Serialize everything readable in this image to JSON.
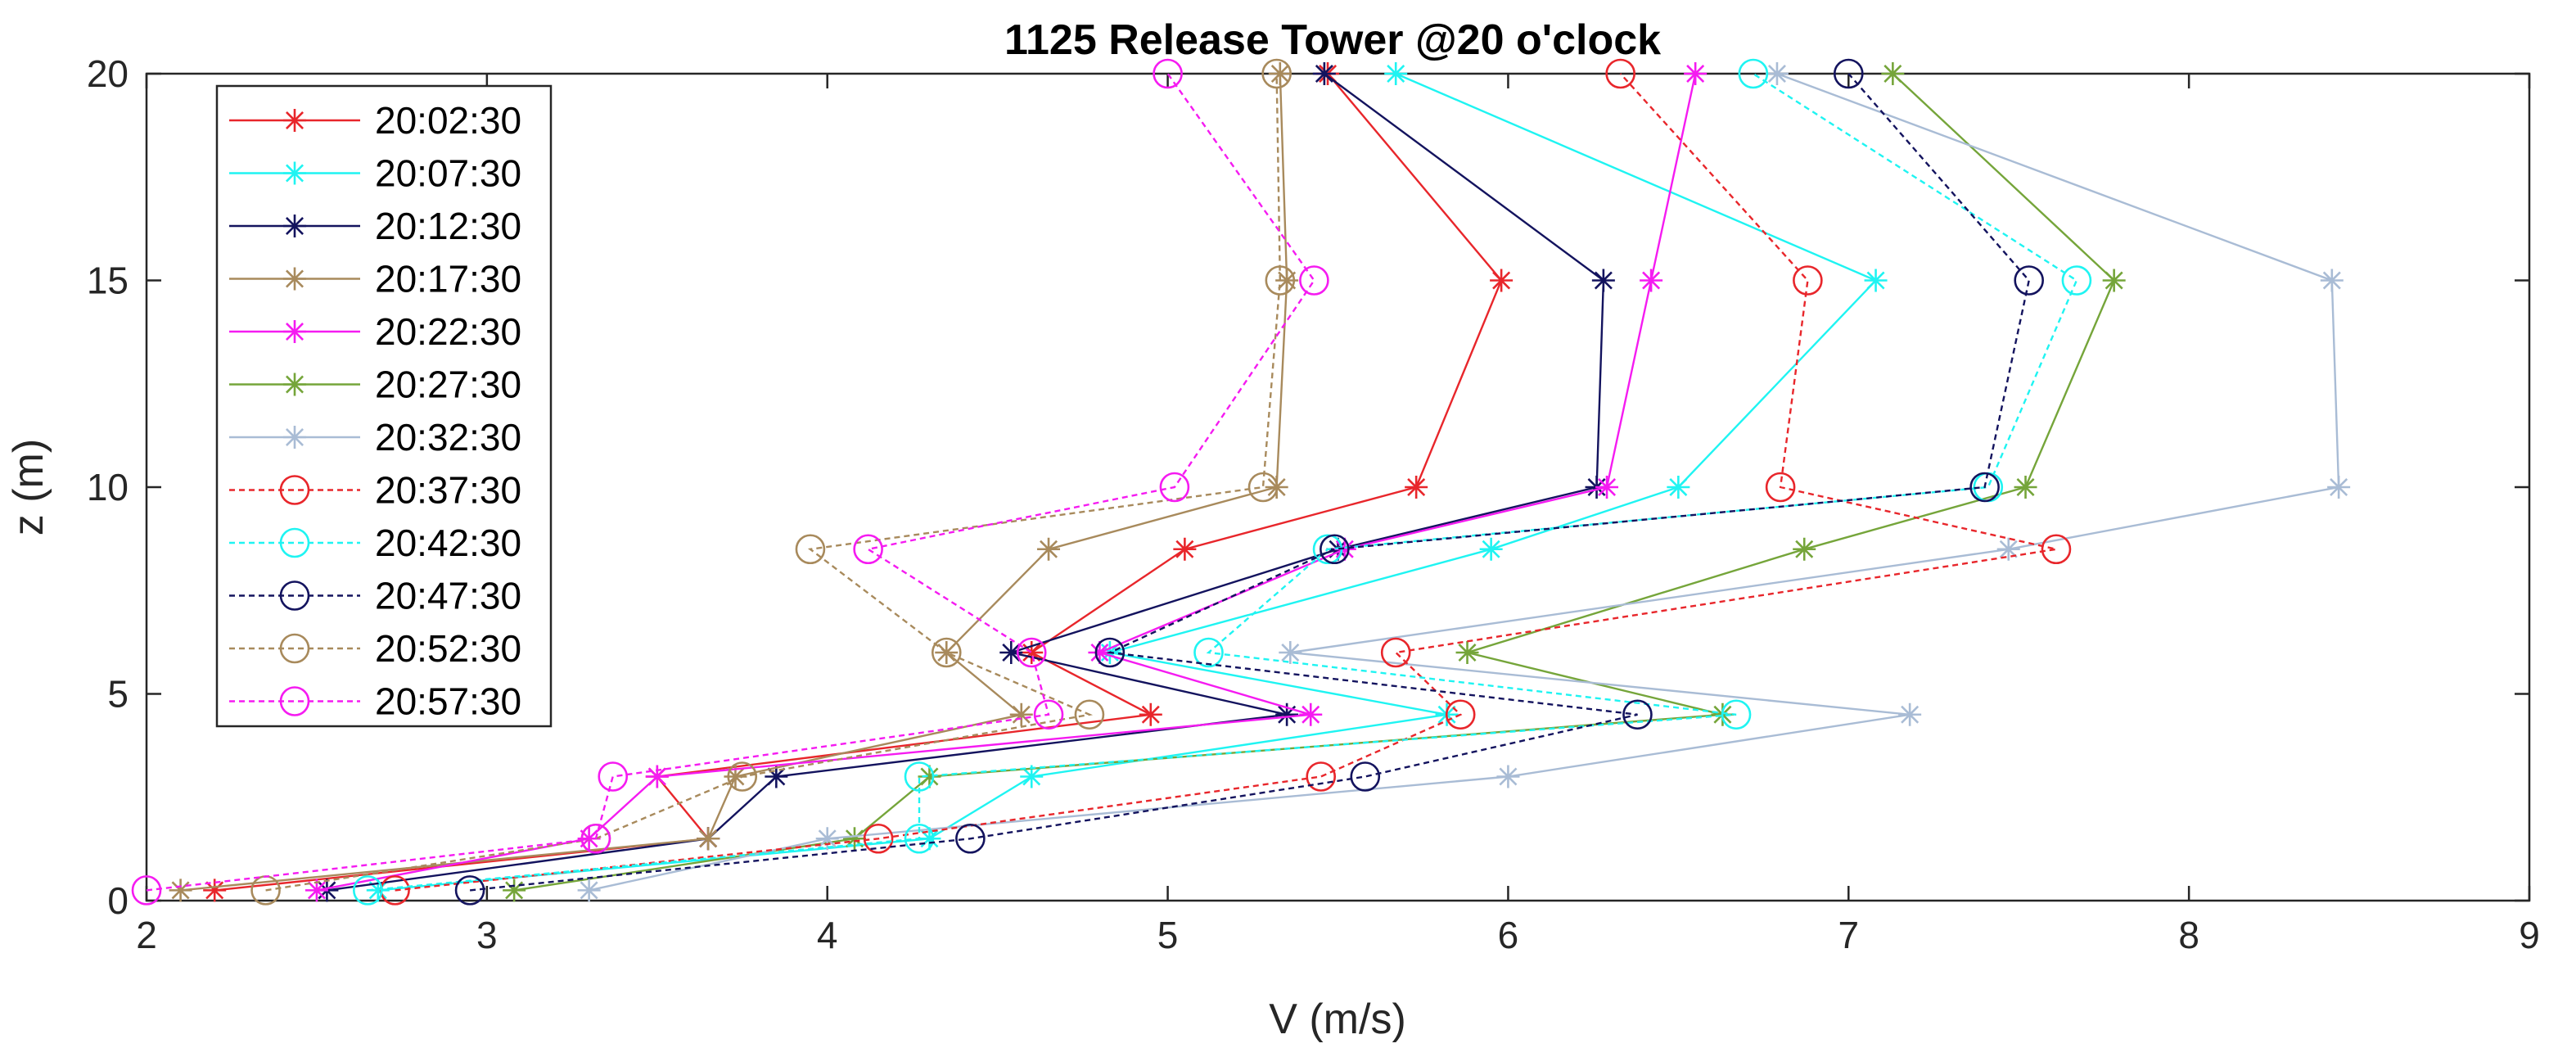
{
  "chart_data": {
    "type": "line",
    "title": "1125 Release Tower @20 o'clock",
    "xlabel": "V (m/s)",
    "ylabel": "z (m)",
    "xlim": [
      2,
      9
    ],
    "ylim": [
      0,
      20
    ],
    "xticks": [
      "2",
      "3",
      "4",
      "5",
      "6",
      "7",
      "8",
      "9"
    ],
    "yticks": [
      "0",
      "5",
      "10",
      "15",
      "20"
    ],
    "grid": false,
    "legend_position": "top-left",
    "z": [
      0.25,
      1.5,
      3,
      4.5,
      6,
      8.5,
      10,
      15,
      20
    ],
    "series": [
      {
        "name": "20:02:30",
        "color": "#e8262b",
        "marker": "star",
        "dash": "solid",
        "values": [
          2.2,
          3.65,
          3.5,
          4.95,
          4.6,
          5.05,
          5.73,
          5.98,
          5.47
        ]
      },
      {
        "name": "20:07:30",
        "color": "#1ff4f2",
        "marker": "star",
        "dash": "solid",
        "values": [
          2.68,
          4.3,
          4.6,
          5.82,
          4.83,
          5.95,
          6.5,
          7.08,
          5.67
        ]
      },
      {
        "name": "20:12:30",
        "color": "#13135e",
        "marker": "star",
        "dash": "solid",
        "values": [
          2.53,
          3.65,
          3.85,
          5.35,
          4.54,
          5.5,
          6.26,
          6.28,
          5.46
        ]
      },
      {
        "name": "20:17:30",
        "color": "#a88a5c",
        "marker": "star",
        "dash": "solid",
        "values": [
          2.1,
          3.65,
          3.73,
          4.57,
          4.35,
          4.65,
          5.32,
          5.35,
          5.33
        ]
      },
      {
        "name": "20:22:30",
        "color": "#f51bf1",
        "marker": "star",
        "dash": "solid",
        "values": [
          2.5,
          3.3,
          3.5,
          5.42,
          4.8,
          5.52,
          6.29,
          6.42,
          6.55
        ]
      },
      {
        "name": "20:27:30",
        "color": "#75a53a",
        "marker": "star",
        "dash": "solid",
        "values": [
          3.08,
          4.08,
          4.3,
          6.63,
          5.88,
          6.87,
          7.52,
          7.78,
          7.13
        ]
      },
      {
        "name": "20:32:30",
        "color": "#a9bcd5",
        "marker": "star",
        "dash": "solid",
        "values": [
          3.3,
          4.0,
          6.0,
          7.18,
          5.36,
          7.47,
          8.44,
          8.42,
          6.79
        ]
      },
      {
        "name": "20:37:30",
        "color": "#e8262b",
        "marker": "circle",
        "dash": "dashed",
        "values": [
          2.73,
          4.15,
          5.45,
          5.86,
          5.67,
          7.61,
          6.8,
          6.88,
          6.33
        ]
      },
      {
        "name": "20:42:30",
        "color": "#1ff4f2",
        "marker": "circle",
        "dash": "dashed",
        "values": [
          2.65,
          4.27,
          4.27,
          6.67,
          5.12,
          5.47,
          7.41,
          7.67,
          6.72
        ]
      },
      {
        "name": "20:47:30",
        "color": "#13135e",
        "marker": "circle",
        "dash": "dashed",
        "values": [
          2.95,
          4.42,
          5.58,
          6.38,
          4.83,
          5.49,
          7.4,
          7.53,
          7.0
        ]
      },
      {
        "name": "20:52:30",
        "color": "#a88a5c",
        "marker": "circle",
        "dash": "dashed",
        "values": [
          2.35,
          3.32,
          3.75,
          4.77,
          4.35,
          3.95,
          5.28,
          5.33,
          5.32
        ]
      },
      {
        "name": "20:57:30",
        "color": "#f51bf1",
        "marker": "circle",
        "dash": "dashed",
        "values": [
          2.0,
          3.32,
          3.37,
          4.65,
          4.6,
          4.12,
          5.02,
          5.43,
          5.0
        ]
      }
    ]
  }
}
